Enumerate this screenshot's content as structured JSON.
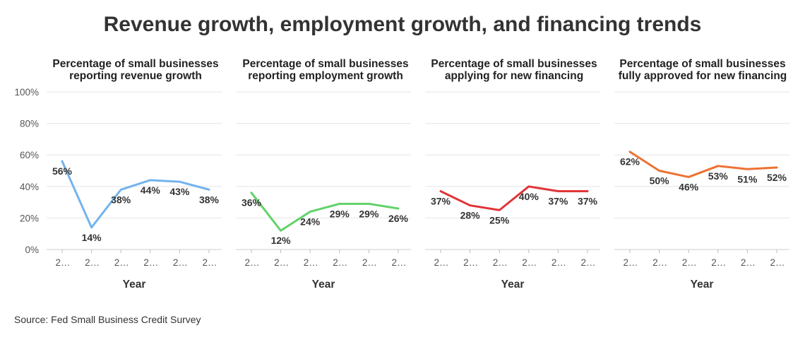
{
  "title": "Revenue growth, employment growth, and financing trends",
  "source": "Source: Fed Small Business Credit Survey",
  "chart_data": [
    {
      "type": "line",
      "title": "Percentage of small businesses reporting revenue growth",
      "title_lines": [
        "Percentage of small businesses",
        "reporting revenue growth"
      ],
      "categories": [
        "2…",
        "2…",
        "2…",
        "2…",
        "2…",
        "2…"
      ],
      "values": [
        56,
        14,
        38,
        44,
        43,
        38
      ],
      "labels": [
        "56%",
        "14%",
        "38%",
        "44%",
        "43%",
        "38%"
      ],
      "color": "#74b3ee",
      "xlabel": "Year",
      "ylabel": "",
      "ylim": [
        0,
        100
      ],
      "yticks": [
        "0%",
        "20%",
        "40%",
        "60%",
        "80%",
        "100%"
      ]
    },
    {
      "type": "line",
      "title": "Percentage of small businesses reporting employment growth",
      "title_lines": [
        "Percentage of small businesses",
        "reporting employment growth"
      ],
      "categories": [
        "2…",
        "2…",
        "2…",
        "2…",
        "2…",
        "2…"
      ],
      "values": [
        36,
        12,
        24,
        29,
        29,
        26
      ],
      "labels": [
        "36%",
        "12%",
        "24%",
        "29%",
        "29%",
        "26%"
      ],
      "color": "#62d26a",
      "xlabel": "Year",
      "ylabel": "",
      "ylim": [
        0,
        100
      ]
    },
    {
      "type": "line",
      "title": "Percentage of small businesses applying for new financing",
      "title_lines": [
        "Percentage of small businesses",
        "applying for new financing"
      ],
      "categories": [
        "2…",
        "2…",
        "2…",
        "2…",
        "2…",
        "2…"
      ],
      "values": [
        37,
        28,
        25,
        40,
        37,
        37
      ],
      "labels": [
        "37%",
        "28%",
        "25%",
        "40%",
        "37%",
        "37%"
      ],
      "color": "#e03538",
      "xlabel": "Year",
      "ylabel": "",
      "ylim": [
        0,
        100
      ]
    },
    {
      "type": "line",
      "title": "Percentage of small businesses fully approved for new financing",
      "title_lines": [
        "Percentage of small businesses",
        "fully approved for new financing"
      ],
      "categories": [
        "2…",
        "2…",
        "2…",
        "2…",
        "2…",
        "2…"
      ],
      "values": [
        62,
        50,
        46,
        53,
        51,
        52
      ],
      "labels": [
        "62%",
        "50%",
        "46%",
        "53%",
        "51%",
        "52%"
      ],
      "color": "#ec7233",
      "xlabel": "Year",
      "ylabel": "",
      "ylim": [
        0,
        100
      ]
    }
  ]
}
